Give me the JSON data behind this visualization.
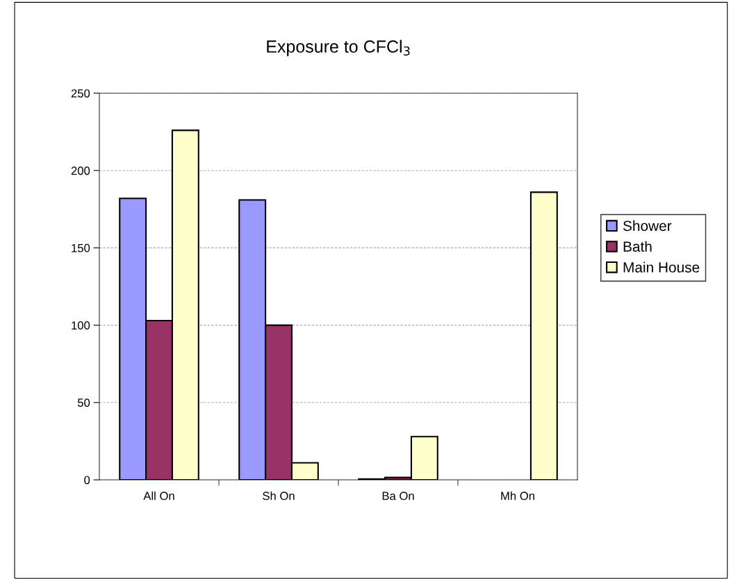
{
  "chart_data": {
    "type": "bar",
    "title": "Exposure to CFCl$_{3}$",
    "categories": [
      "All On",
      "Sh On",
      "Ba On",
      "Mh On"
    ],
    "series": [
      {
        "name": "Shower",
        "color": "#9999ff",
        "values": [
          182,
          181,
          0.5,
          null
        ]
      },
      {
        "name": "Bath",
        "color": "#993366",
        "values": [
          103,
          100,
          1.5,
          null
        ]
      },
      {
        "name": "Main House",
        "color": "#ffffcc",
        "values": [
          226,
          11,
          28,
          186
        ]
      }
    ],
    "ylim": [
      0,
      250
    ],
    "yticks": [
      0,
      50,
      100,
      150,
      200,
      250
    ],
    "grid": "y",
    "legend": "right"
  }
}
